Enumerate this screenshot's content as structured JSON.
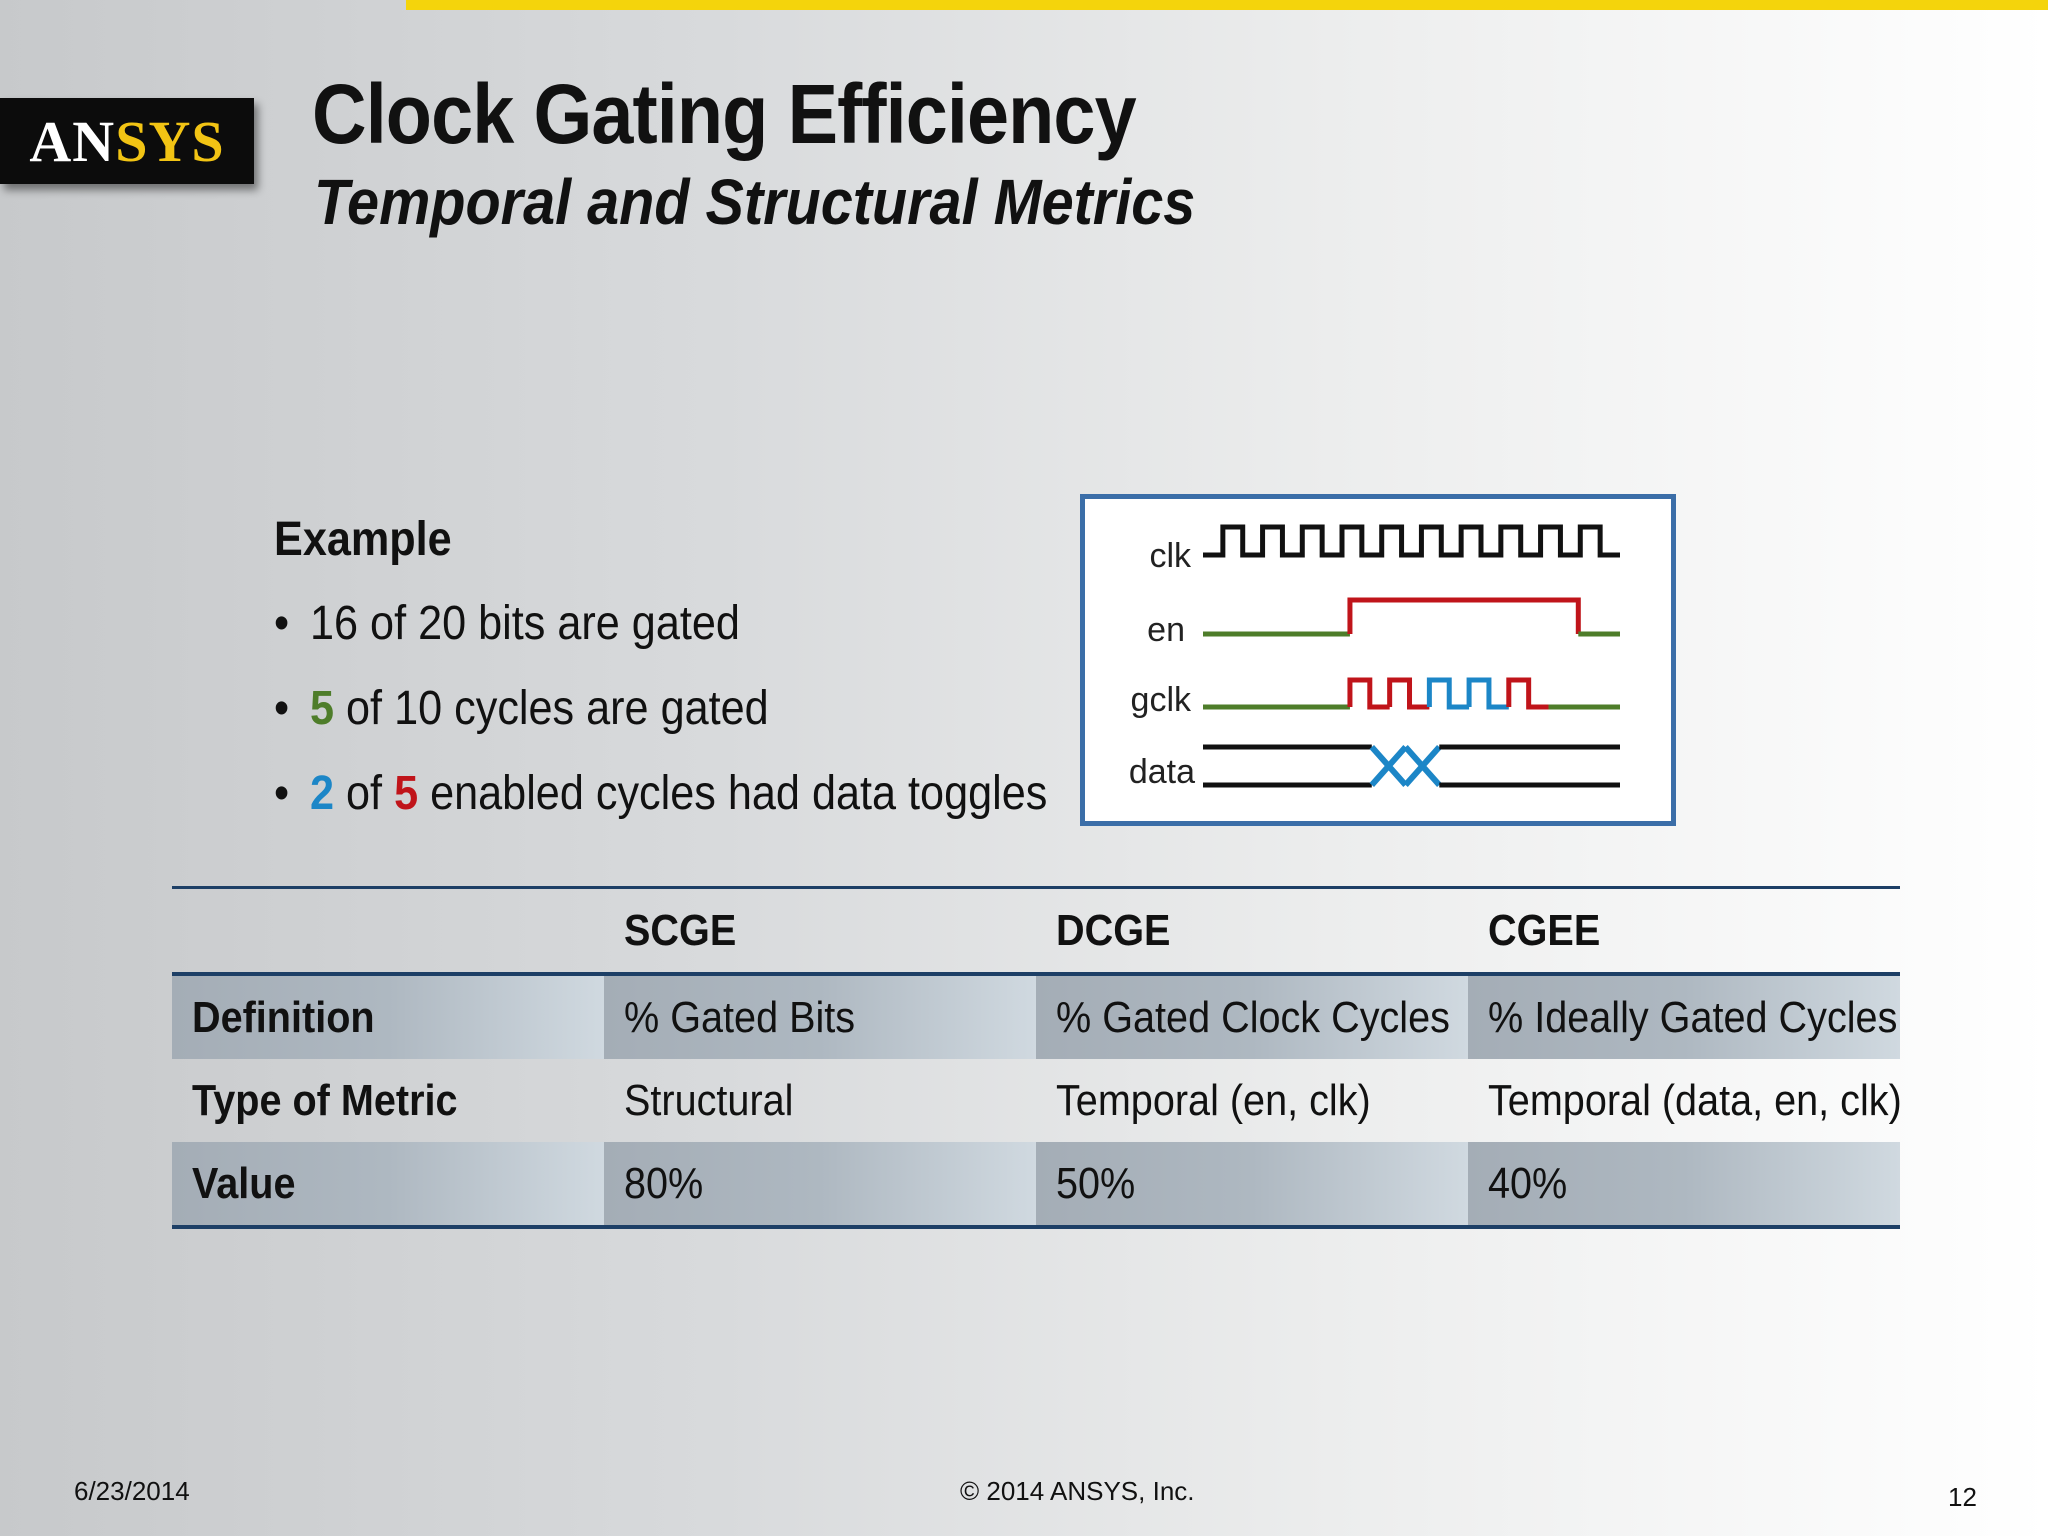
{
  "header": {
    "logo_text": "ANSYS",
    "title": "Clock Gating Efficiency",
    "subtitle": "Temporal and Structural Metrics"
  },
  "example": {
    "heading": "Example",
    "bullets": [
      {
        "parts": [
          "16 of 20 bits are gated"
        ]
      },
      {
        "parts": [
          "5",
          " of 10 cycles are gated"
        ]
      },
      {
        "parts": [
          "2",
          " of ",
          "5",
          " enabled cycles had data toggles"
        ]
      }
    ]
  },
  "waveform": {
    "signals": [
      "clk",
      "en",
      "gclk",
      "data"
    ],
    "clk_cycles": 10,
    "enabled_cycles": 5,
    "data_toggles": 2,
    "colors": {
      "clk": "#111111",
      "en_low": "#4e7d2a",
      "en_high": "#c0141a",
      "gclk_on": "#c0141a",
      "gclk_toggle": "#1c86c7",
      "data": "#111111",
      "data_toggle": "#1c86c7"
    }
  },
  "table": {
    "columns": [
      "",
      "SCGE",
      "DCGE",
      "CGEE"
    ],
    "rows": [
      {
        "label": "Definition",
        "values": [
          "% Gated Bits",
          "% Gated Clock Cycles",
          "% Ideally Gated Cycles"
        ]
      },
      {
        "label": "Type of Metric",
        "values": [
          "Structural",
          "Temporal (en, clk)",
          "Temporal (data, en, clk)"
        ]
      },
      {
        "label": "Value",
        "values": [
          "80%",
          "50%",
          "40%"
        ]
      }
    ]
  },
  "footer": {
    "date": "6/23/2014",
    "copyright": "© 2014 ANSYS, Inc.",
    "page": "12"
  },
  "colors": {
    "accent_yellow": "#f4d40c",
    "table_rule": "#1d3f66",
    "frame_blue": "#3b6ea8"
  }
}
